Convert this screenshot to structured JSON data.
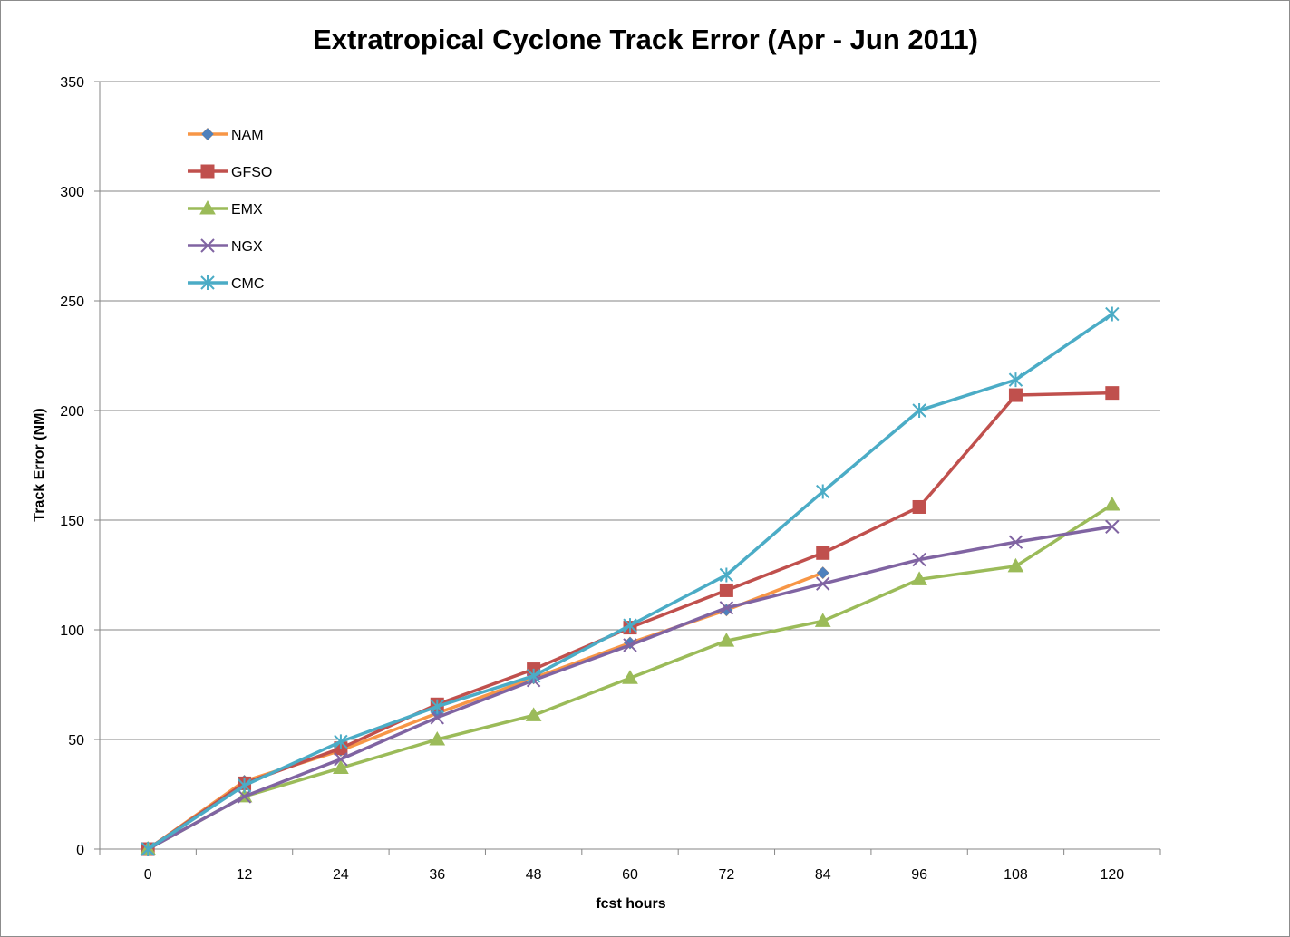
{
  "chart_data": {
    "type": "line",
    "title": "Extratropical Cyclone Track Error (Apr - Jun 2011)",
    "xlabel": "fcst hours",
    "ylabel": "Track Error  (NM)",
    "categories": [
      "0",
      "12",
      "24",
      "36",
      "48",
      "60",
      "72",
      "84",
      "96",
      "108",
      "120"
    ],
    "ylim": [
      0,
      350
    ],
    "yticks": [
      0,
      50,
      100,
      150,
      200,
      250,
      300,
      350
    ],
    "grid": "horizontal",
    "legend_position": "top-left",
    "series": [
      {
        "name": "NAM",
        "color": "#F79646",
        "marker": "diamond",
        "marker_color": "#4F81BD",
        "values": [
          0,
          31,
          45,
          62,
          78,
          94,
          109,
          126,
          null,
          null,
          null
        ]
      },
      {
        "name": "GFSO",
        "color": "#C0504D",
        "marker": "square",
        "marker_color": "#C0504D",
        "values": [
          0,
          30,
          46,
          66,
          82,
          101,
          118,
          135,
          156,
          207,
          208
        ]
      },
      {
        "name": "EMX",
        "color": "#9BBB59",
        "marker": "triangle",
        "marker_color": "#9BBB59",
        "values": [
          0,
          24,
          37,
          50,
          61,
          78,
          95,
          104,
          123,
          129,
          157
        ]
      },
      {
        "name": "NGX",
        "color": "#8064A2",
        "marker": "x",
        "marker_color": "#8064A2",
        "values": [
          0,
          24,
          41,
          60,
          77,
          93,
          110,
          121,
          132,
          140,
          147
        ]
      },
      {
        "name": "CMC",
        "color": "#4BACC6",
        "marker": "star",
        "marker_color": "#4BACC6",
        "values": [
          0,
          29,
          49,
          65,
          79,
          102,
          125,
          163,
          200,
          214,
          244
        ]
      }
    ]
  }
}
